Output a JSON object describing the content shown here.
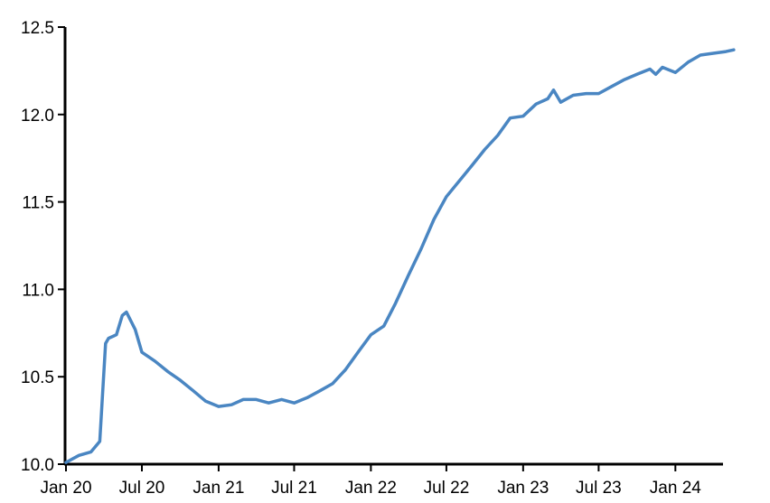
{
  "chart_data": {
    "type": "line",
    "title": "",
    "xlabel": "",
    "ylabel": "",
    "ylim": [
      10.0,
      12.5
    ],
    "xlim": [
      "2020-01-01",
      "2024-05-20"
    ],
    "yticks": [
      "10.0",
      "10.5",
      "11.0",
      "11.5",
      "12.0",
      "12.5"
    ],
    "xticks": [
      {
        "date": "2020-01-01",
        "label": "Jan 20"
      },
      {
        "date": "2020-07-01",
        "label": "Jul 20"
      },
      {
        "date": "2021-01-01",
        "label": "Jan 21"
      },
      {
        "date": "2021-07-01",
        "label": "Jul 21"
      },
      {
        "date": "2022-01-01",
        "label": "Jan 22"
      },
      {
        "date": "2022-07-01",
        "label": "Jul 22"
      },
      {
        "date": "2023-01-01",
        "label": "Jan 23"
      },
      {
        "date": "2023-07-01",
        "label": "Jul 23"
      },
      {
        "date": "2024-01-01",
        "label": "Jan 24"
      }
    ],
    "grid": false,
    "legend": "none",
    "line_color": "#4a86c2",
    "series": [
      {
        "x": [
          "2020-01-01",
          "2020-02-01",
          "2020-03-01",
          "2020-03-22",
          "2020-04-05",
          "2020-04-12",
          "2020-05-01",
          "2020-05-15",
          "2020-05-25",
          "2020-06-15",
          "2020-07-01",
          "2020-08-01",
          "2020-09-01",
          "2020-10-01",
          "2020-11-01",
          "2020-12-01",
          "2021-01-01",
          "2021-02-01",
          "2021-03-01",
          "2021-04-01",
          "2021-05-01",
          "2021-06-01",
          "2021-07-01",
          "2021-08-01",
          "2021-09-01",
          "2021-10-01",
          "2021-11-01",
          "2021-12-01",
          "2022-01-01",
          "2022-02-01",
          "2022-03-01",
          "2022-04-01",
          "2022-05-01",
          "2022-06-01",
          "2022-07-01",
          "2022-08-01",
          "2022-09-01",
          "2022-10-01",
          "2022-11-01",
          "2022-12-01",
          "2023-01-01",
          "2023-02-01",
          "2023-03-01",
          "2023-03-15",
          "2023-04-01",
          "2023-05-01",
          "2023-06-01",
          "2023-07-01",
          "2023-08-01",
          "2023-09-01",
          "2023-10-01",
          "2023-11-01",
          "2023-11-15",
          "2023-12-01",
          "2024-01-01",
          "2024-02-01",
          "2024-03-01",
          "2024-04-01",
          "2024-05-01",
          "2024-05-20"
        ],
        "values": [
          10.01,
          10.05,
          10.07,
          10.13,
          10.69,
          10.72,
          10.74,
          10.85,
          10.87,
          10.77,
          10.64,
          10.59,
          10.53,
          10.48,
          10.42,
          10.36,
          10.33,
          10.34,
          10.37,
          10.37,
          10.35,
          10.37,
          10.35,
          10.38,
          10.42,
          10.46,
          10.54,
          10.64,
          10.74,
          10.79,
          10.92,
          11.08,
          11.23,
          11.4,
          11.53,
          11.62,
          11.71,
          11.8,
          11.88,
          11.98,
          11.99,
          12.06,
          12.09,
          12.14,
          12.07,
          12.11,
          12.12,
          12.12,
          12.16,
          12.2,
          12.23,
          12.26,
          12.23,
          12.27,
          12.24,
          12.3,
          12.34,
          12.35,
          12.36,
          12.37
        ]
      }
    ]
  }
}
